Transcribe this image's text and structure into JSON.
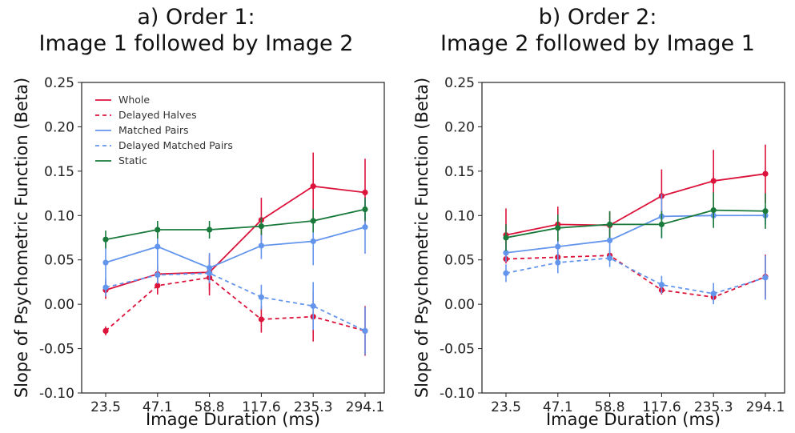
{
  "chart_data": [
    {
      "type": "line",
      "title_line1": "a) Order 1:",
      "title_line2": "Image 1 followed by Image 2",
      "xlabel": "Image Duration (ms)",
      "ylabel": "Slope of Psychometric Function (Beta)",
      "categories": [
        "23.5",
        "47.1",
        "58.8",
        "117.6",
        "235.3",
        "294.1"
      ],
      "ylim": [
        -0.1,
        0.25
      ],
      "yticks": [
        "-0.10",
        "-0.05",
        "0.00",
        "0.05",
        "0.10",
        "0.15",
        "0.20",
        "0.25"
      ],
      "grid": false,
      "legend_position": "top-left",
      "series": [
        {
          "name": "Whole",
          "color": "#dc143c",
          "dash": false,
          "values": [
            0.016,
            0.034,
            0.036,
            0.095,
            0.133,
            0.126
          ],
          "errors": [
            0.01,
            0.01,
            0.02,
            0.025,
            0.038,
            0.038
          ]
        },
        {
          "name": "Delayed Halves",
          "color": "#dc143c",
          "dash": true,
          "values": [
            -0.03,
            0.021,
            0.03,
            -0.017,
            -0.014,
            -0.03
          ],
          "errors": [
            0.005,
            0.01,
            0.02,
            0.015,
            0.028,
            0.028
          ]
        },
        {
          "name": "Matched Pairs",
          "color": "#6495ed",
          "dash": false,
          "values": [
            0.047,
            0.065,
            0.041,
            0.066,
            0.071,
            0.087
          ],
          "errors": [
            0.025,
            0.025,
            0.017,
            0.015,
            0.027,
            0.03
          ]
        },
        {
          "name": "Delayed Matched Pairs",
          "color": "#6495ed",
          "dash": true,
          "values": [
            0.019,
            0.033,
            0.035,
            0.008,
            -0.002,
            -0.03
          ],
          "errors": [
            0.01,
            0.01,
            0.01,
            0.014,
            0.027,
            0.027
          ]
        },
        {
          "name": "Static",
          "color": "#1a7a3c",
          "dash": false,
          "values": [
            0.073,
            0.084,
            0.084,
            0.088,
            0.094,
            0.107
          ],
          "errors": [
            0.01,
            0.01,
            0.01,
            0.01,
            0.013,
            0.013
          ]
        }
      ]
    },
    {
      "type": "line",
      "title_line1": "b) Order 2:",
      "title_line2": "Image 2 followed by Image 1",
      "xlabel": "Image Duration (ms)",
      "ylabel": "Slope of Psychometric Function (Beta)",
      "categories": [
        "23.5",
        "47.1",
        "58.8",
        "117.6",
        "235.3",
        "294.1"
      ],
      "ylim": [
        -0.1,
        0.25
      ],
      "yticks": [
        "-0.10",
        "-0.05",
        "0.00",
        "0.05",
        "0.10",
        "0.15",
        "0.20",
        "0.25"
      ],
      "grid": false,
      "series": [
        {
          "name": "Whole",
          "color": "#dc143c",
          "dash": false,
          "values": [
            0.078,
            0.09,
            0.089,
            0.122,
            0.139,
            0.147
          ],
          "errors": [
            0.03,
            0.02,
            0.015,
            0.03,
            0.035,
            0.033
          ]
        },
        {
          "name": "Delayed Halves",
          "color": "#dc143c",
          "dash": true,
          "values": [
            0.051,
            0.053,
            0.055,
            0.016,
            0.008,
            0.031
          ],
          "errors": [
            0.005,
            0.005,
            0.005,
            0.005,
            0.005,
            0.025
          ]
        },
        {
          "name": "Matched Pairs",
          "color": "#6495ed",
          "dash": false,
          "values": [
            0.058,
            0.065,
            0.072,
            0.099,
            0.1,
            0.1
          ],
          "errors": [
            0.01,
            0.015,
            0.012,
            0.025,
            0.01,
            0.01
          ]
        },
        {
          "name": "Delayed Matched Pairs",
          "color": "#6495ed",
          "dash": true,
          "values": [
            0.035,
            0.047,
            0.052,
            0.022,
            0.012,
            0.03
          ],
          "errors": [
            0.01,
            0.012,
            0.01,
            0.01,
            0.012,
            0.025
          ]
        },
        {
          "name": "Static",
          "color": "#1a7a3c",
          "dash": false,
          "values": [
            0.075,
            0.086,
            0.09,
            0.09,
            0.106,
            0.105
          ],
          "errors": [
            0.015,
            0.015,
            0.015,
            0.015,
            0.02,
            0.02
          ]
        }
      ]
    }
  ]
}
